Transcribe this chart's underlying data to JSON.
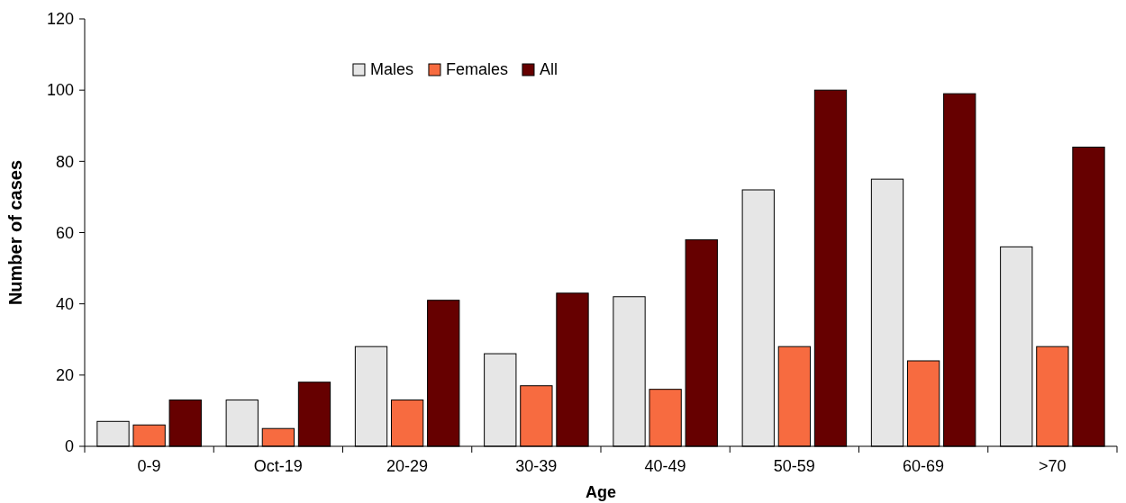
{
  "chart_data": {
    "type": "bar",
    "xlabel": "Age",
    "ylabel": "Number of cases",
    "categories": [
      "0-9",
      "Oct-19",
      "20-29",
      "30-39",
      "40-49",
      "50-59",
      "60-69",
      ">70"
    ],
    "series": [
      {
        "name": "Males",
        "color": "#e6e6e6",
        "values": [
          7,
          13,
          28,
          26,
          42,
          72,
          75,
          56
        ]
      },
      {
        "name": "Females",
        "color": "#f76b40",
        "values": [
          6,
          5,
          13,
          17,
          16,
          28,
          24,
          28
        ]
      },
      {
        "name": "All",
        "color": "#660000",
        "values": [
          13,
          18,
          41,
          43,
          58,
          100,
          99,
          84
        ]
      }
    ],
    "ylim": [
      0,
      120
    ],
    "yticks": [
      0,
      20,
      40,
      60,
      80,
      100,
      120
    ],
    "grid": false,
    "legend": "top"
  }
}
